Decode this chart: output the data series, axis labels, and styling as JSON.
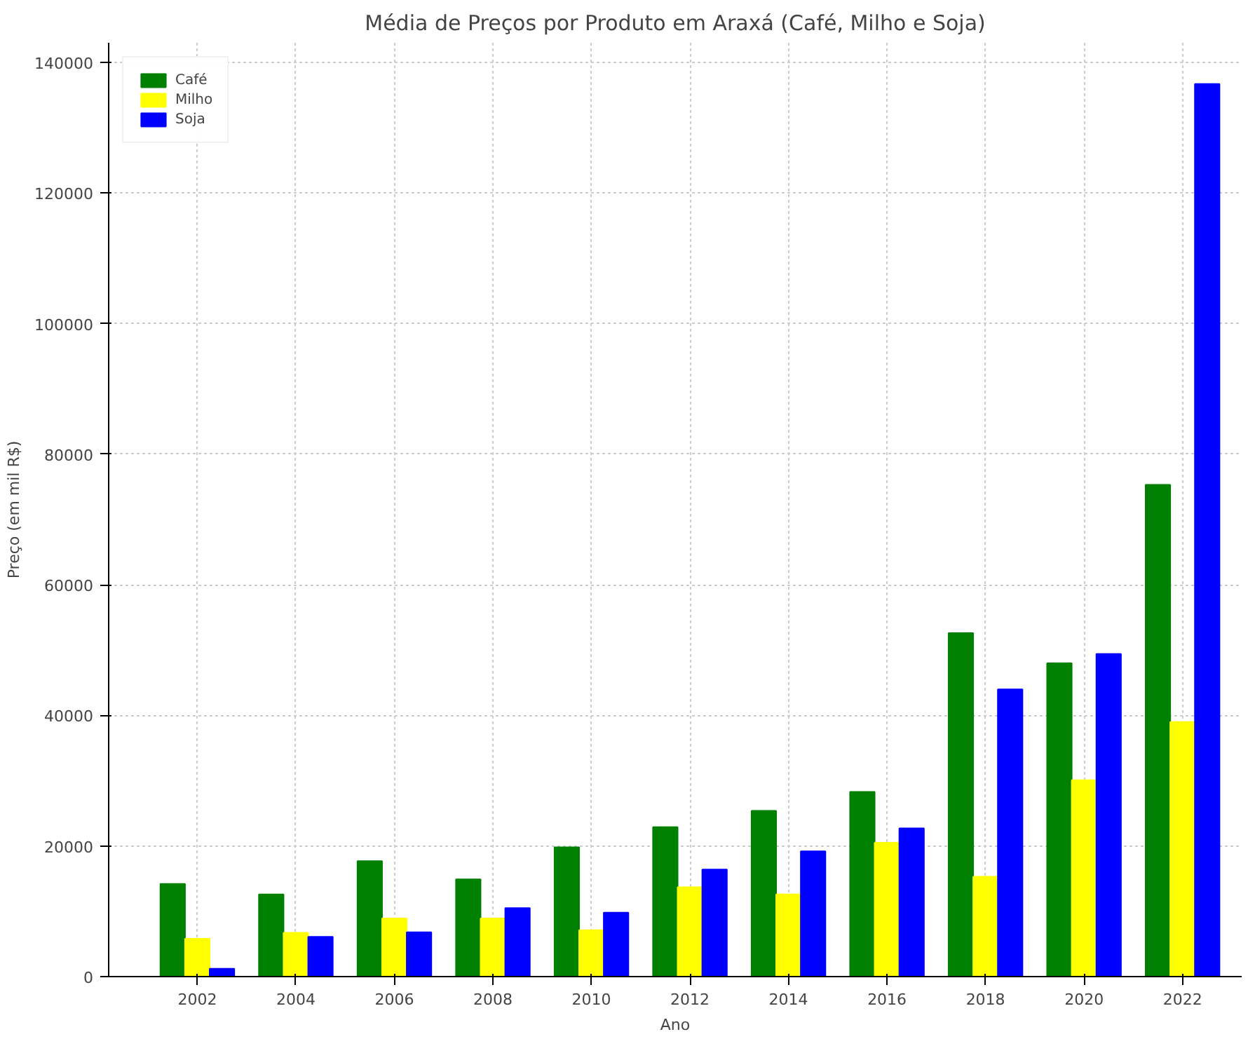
{
  "chart_data": {
    "type": "bar",
    "title": "Média de Preços por Produto em Araxá (Café, Milho e Soja)",
    "xlabel": "Ano",
    "ylabel": "Preço (em mil R$)",
    "categories": [
      "2002",
      "2004",
      "2006",
      "2008",
      "2010",
      "2012",
      "2014",
      "2016",
      "2018",
      "2020",
      "2022"
    ],
    "series": [
      {
        "name": "Café",
        "color": "#008000",
        "values": [
          14200,
          12600,
          17700,
          14900,
          19800,
          22900,
          25400,
          28300,
          52600,
          48000,
          75300
        ]
      },
      {
        "name": "Milho",
        "color": "#ffff00",
        "values": [
          5800,
          6700,
          8900,
          8900,
          7100,
          13700,
          12600,
          20500,
          15300,
          30100,
          39000
        ]
      },
      {
        "name": "Soja",
        "color": "#0000ff",
        "values": [
          1200,
          6100,
          6800,
          10500,
          9800,
          16400,
          19200,
          22700,
          44000,
          49400,
          136700
        ]
      }
    ],
    "ylim": [
      0,
      143000
    ],
    "yticks": [
      0,
      20000,
      40000,
      60000,
      80000,
      100000,
      120000,
      140000
    ],
    "grid": true,
    "legend": "top left"
  }
}
